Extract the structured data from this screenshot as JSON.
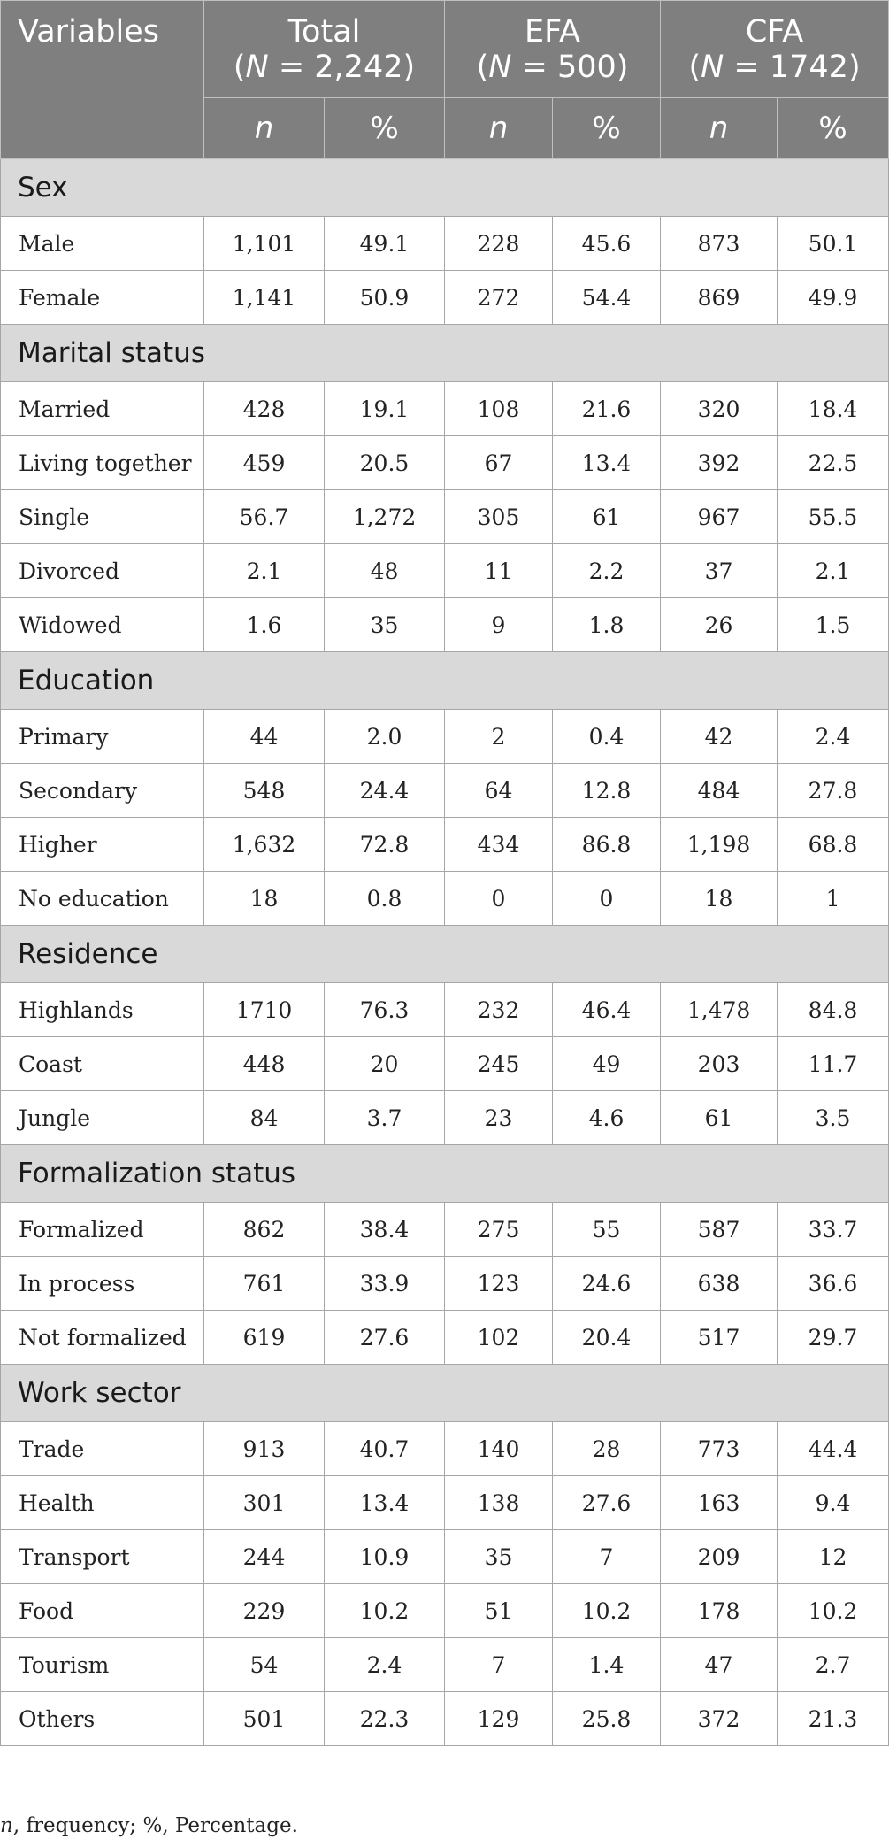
{
  "header": {
    "variables": "Variables",
    "groups": [
      {
        "name": "Total",
        "n_label": "N",
        "n_value": " = 2,242"
      },
      {
        "name": "EFA",
        "n_label": "N",
        "n_value": " = 500"
      },
      {
        "name": "CFA",
        "n_label": "N",
        "n_value": " = 1742"
      }
    ],
    "sub_n": "n",
    "sub_pct": "%"
  },
  "sections": [
    {
      "title": "Sex",
      "rows": [
        {
          "label": "Male",
          "values": [
            "1,101",
            "49.1",
            "228",
            "45.6",
            "873",
            "50.1"
          ]
        },
        {
          "label": "Female",
          "values": [
            "1,141",
            "50.9",
            "272",
            "54.4",
            "869",
            "49.9"
          ]
        }
      ]
    },
    {
      "title": "Marital status",
      "rows": [
        {
          "label": "Married",
          "values": [
            "428",
            "19.1",
            "108",
            "21.6",
            "320",
            "18.4"
          ]
        },
        {
          "label": "Living together",
          "values": [
            "459",
            "20.5",
            "67",
            "13.4",
            "392",
            "22.5"
          ]
        },
        {
          "label": "Single",
          "values": [
            "56.7",
            "1,272",
            "305",
            "61",
            "967",
            "55.5"
          ]
        },
        {
          "label": "Divorced",
          "values": [
            "2.1",
            "48",
            "11",
            "2.2",
            "37",
            "2.1"
          ]
        },
        {
          "label": "Widowed",
          "values": [
            "1.6",
            "35",
            "9",
            "1.8",
            "26",
            "1.5"
          ]
        }
      ]
    },
    {
      "title": "Education",
      "rows": [
        {
          "label": "Primary",
          "values": [
            "44",
            "2.0",
            "2",
            "0.4",
            "42",
            "2.4"
          ]
        },
        {
          "label": "Secondary",
          "values": [
            "548",
            "24.4",
            "64",
            "12.8",
            "484",
            "27.8"
          ]
        },
        {
          "label": "Higher",
          "values": [
            "1,632",
            "72.8",
            "434",
            "86.8",
            "1,198",
            "68.8"
          ]
        },
        {
          "label": "No education",
          "values": [
            "18",
            "0.8",
            "0",
            "0",
            "18",
            "1"
          ]
        }
      ]
    },
    {
      "title": "Residence",
      "rows": [
        {
          "label": "Highlands",
          "values": [
            "1710",
            "76.3",
            "232",
            "46.4",
            "1,478",
            "84.8"
          ]
        },
        {
          "label": "Coast",
          "values": [
            "448",
            "20",
            "245",
            "49",
            "203",
            "11.7"
          ]
        },
        {
          "label": "Jungle",
          "values": [
            "84",
            "3.7",
            "23",
            "4.6",
            "61",
            "3.5"
          ]
        }
      ]
    },
    {
      "title": "Formalization status",
      "rows": [
        {
          "label": "Formalized",
          "values": [
            "862",
            "38.4",
            "275",
            "55",
            "587",
            "33.7"
          ]
        },
        {
          "label": "In process",
          "values": [
            "761",
            "33.9",
            "123",
            "24.6",
            "638",
            "36.6"
          ]
        },
        {
          "label": "Not formalized",
          "values": [
            "619",
            "27.6",
            "102",
            "20.4",
            "517",
            "29.7"
          ]
        }
      ]
    },
    {
      "title": "Work sector",
      "rows": [
        {
          "label": "Trade",
          "values": [
            "913",
            "40.7",
            "140",
            "28",
            "773",
            "44.4"
          ]
        },
        {
          "label": "Health",
          "values": [
            "301",
            "13.4",
            "138",
            "27.6",
            "163",
            "9.4"
          ]
        },
        {
          "label": "Transport",
          "values": [
            "244",
            "10.9",
            "35",
            "7",
            "209",
            "12"
          ]
        },
        {
          "label": "Food",
          "values": [
            "229",
            "10.2",
            "51",
            "10.2",
            "178",
            "10.2"
          ]
        },
        {
          "label": "Tourism",
          "values": [
            "54",
            "2.4",
            "7",
            "1.4",
            "47",
            "2.7"
          ]
        },
        {
          "label": "Others",
          "values": [
            "501",
            "22.3",
            "129",
            "25.8",
            "372",
            "21.3"
          ]
        }
      ]
    }
  ],
  "footnote": {
    "n_symbol": "n",
    "text": ", frequency; %, Percentage."
  },
  "colors": {
    "header_bg": "#7f7f7f",
    "section_bg": "#d9d9d9",
    "border": "#a6a6a6"
  }
}
